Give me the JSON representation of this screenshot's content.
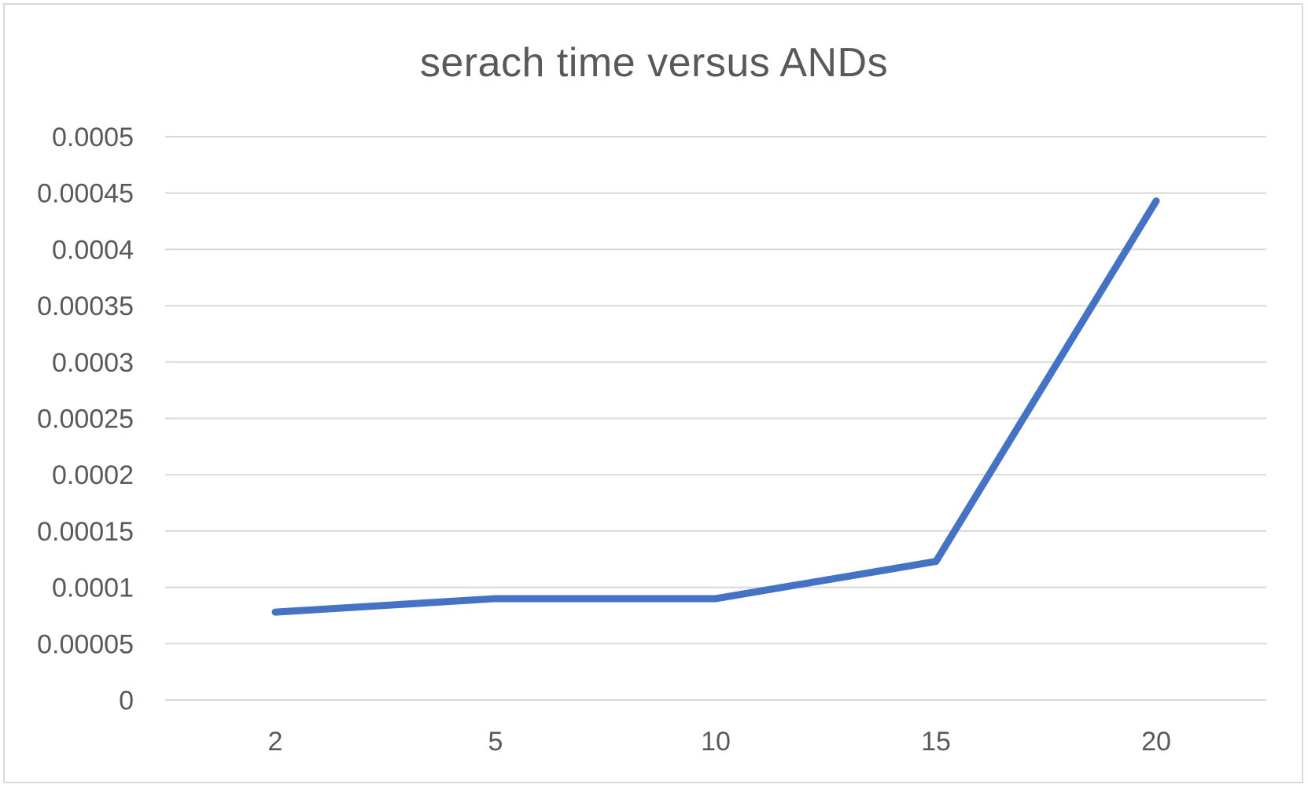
{
  "chart_data": {
    "type": "line",
    "title": "serach time versus ANDs",
    "xlabel": "",
    "ylabel": "",
    "categories": [
      "2",
      "5",
      "10",
      "15",
      "20"
    ],
    "series": [
      {
        "values": [
          7.8e-05,
          9e-05,
          9e-05,
          0.000123,
          0.000443
        ],
        "color": "#4472c4"
      }
    ],
    "ylim": [
      0,
      0.0005
    ],
    "yticks": [
      0,
      5e-05,
      0.0001,
      0.00015,
      0.0002,
      0.00025,
      0.0003,
      0.00035,
      0.0004,
      0.00045,
      0.0005
    ],
    "ytick_labels": [
      "0",
      "0.00005",
      "0.0001",
      "0.00015",
      "0.0002",
      "0.00025",
      "0.0003",
      "0.00035",
      "0.0004",
      "0.00045",
      "0.0005"
    ],
    "grid": true,
    "legend": "none",
    "colors": {
      "gridline": "#d9d9d9",
      "text": "#595959",
      "border": "#d9d9d9"
    }
  }
}
